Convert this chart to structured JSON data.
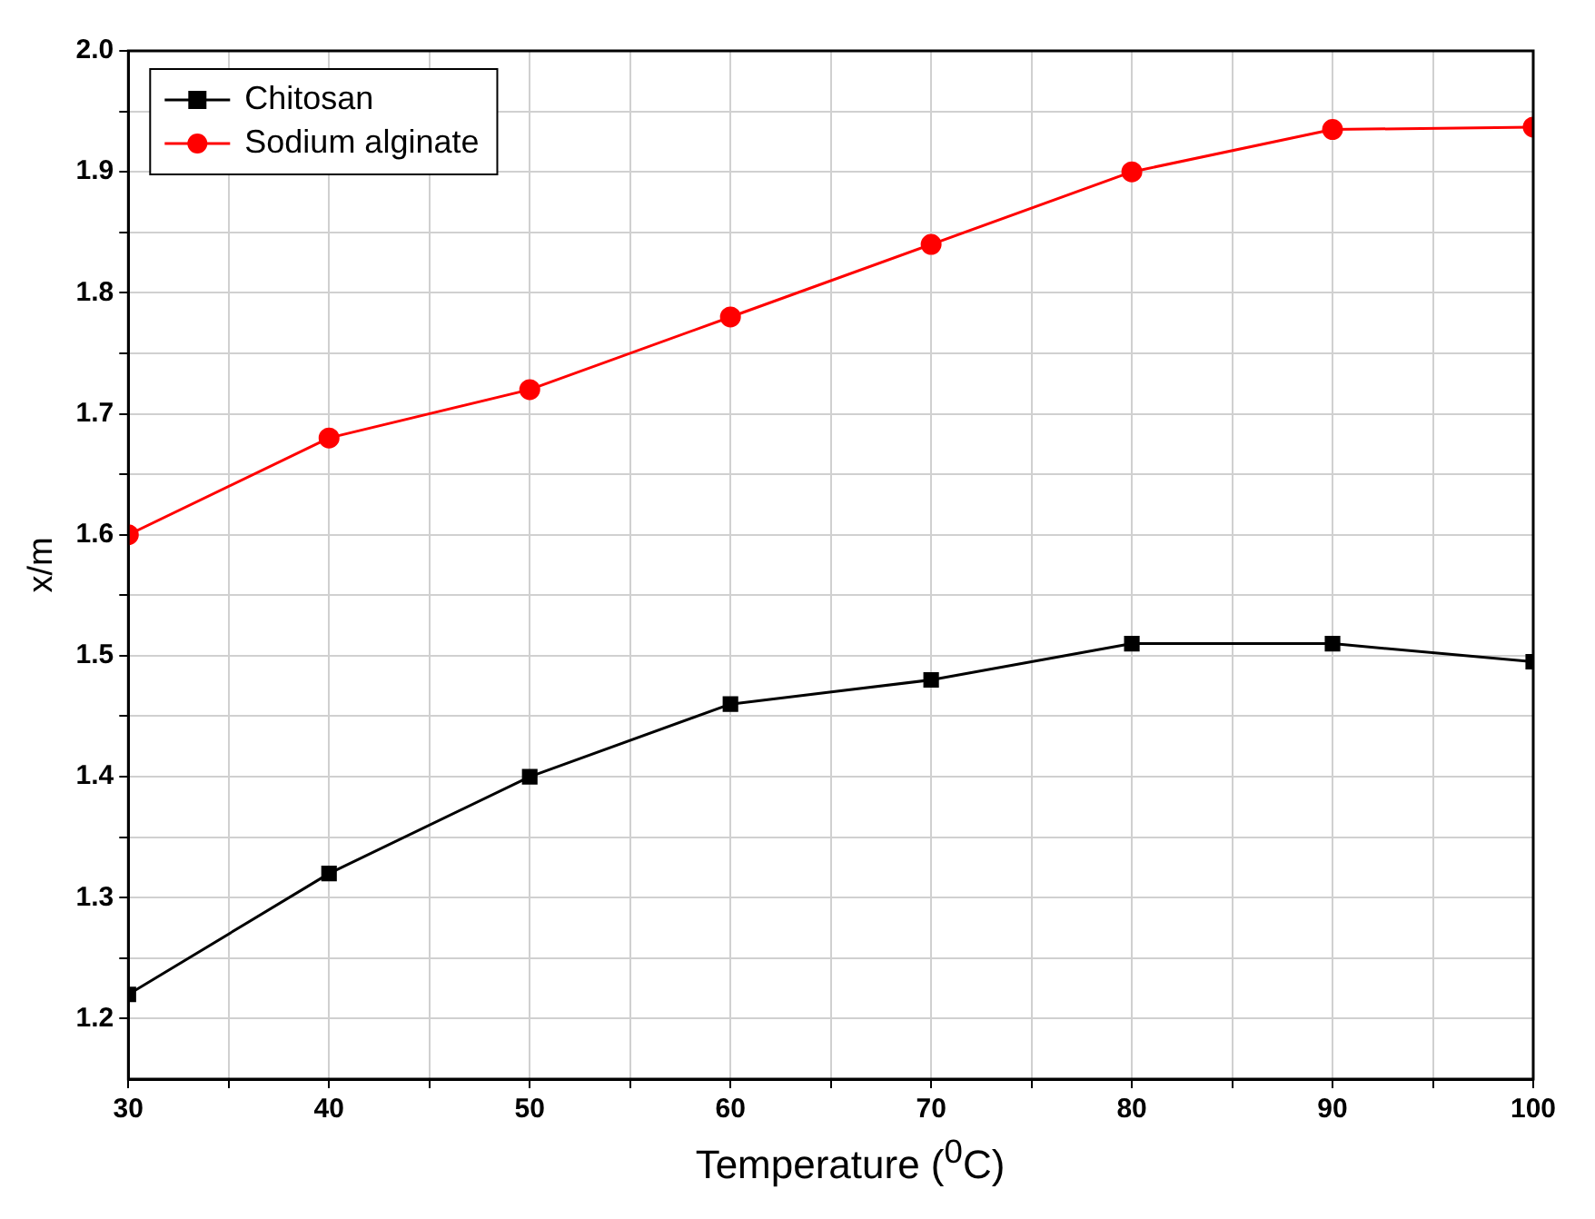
{
  "chart_data": {
    "type": "line",
    "xlabel": "Temperature ($^{0}$C)",
    "ylabel": "x/m",
    "x": [
      30,
      40,
      50,
      60,
      70,
      80,
      90,
      100
    ],
    "series": [
      {
        "name": "Chitosan",
        "color": "#000000",
        "marker": "square",
        "values": [
          1.22,
          1.32,
          1.4,
          1.46,
          1.48,
          1.51,
          1.51,
          1.495
        ]
      },
      {
        "name": "Sodium alginate",
        "color": "#ff0000",
        "marker": "circle",
        "values": [
          1.6,
          1.68,
          1.72,
          1.78,
          1.84,
          1.9,
          1.935,
          1.937
        ]
      }
    ],
    "xlim": [
      30,
      100
    ],
    "xticks": [
      30,
      {
        "value": 35,
        "label": null
      },
      40,
      {
        "value": 45,
        "label": null
      },
      50,
      {
        "value": 55,
        "label": null
      },
      60,
      {
        "value": 65,
        "label": null
      },
      70,
      {
        "value": 75,
        "label": null
      },
      80,
      {
        "value": 85,
        "label": null
      },
      90,
      {
        "value": 95,
        "label": null
      },
      100
    ],
    "ylim": [
      1.15,
      2.0
    ],
    "yticks": [
      1.2,
      {
        "value": 1.25,
        "label": null
      },
      1.3,
      {
        "value": 1.35,
        "label": null
      },
      1.4,
      {
        "value": 1.45,
        "label": null
      },
      1.5,
      {
        "value": 1.55,
        "label": null
      },
      1.6,
      {
        "value": 1.65,
        "label": null
      },
      1.7,
      {
        "value": 1.75,
        "label": null
      },
      1.8,
      {
        "value": 1.85,
        "label": null
      },
      1.9,
      {
        "value": 1.95,
        "label": null
      },
      {
        "value": 2.0,
        "label": "2.0"
      }
    ],
    "grid": true,
    "legend": "top left",
    "line_style": "solid"
  }
}
